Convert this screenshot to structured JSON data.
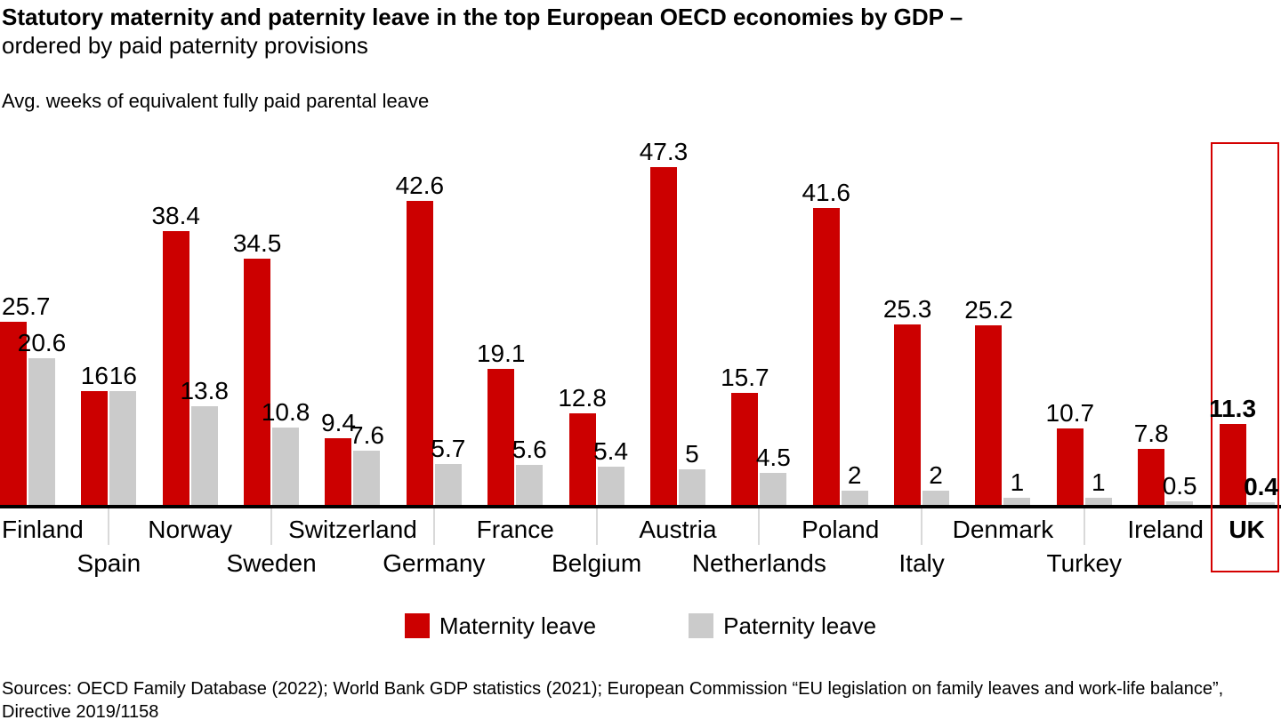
{
  "title": {
    "line1": "Statutory maternity and paternity leave in the top European OECD economies by GDP –",
    "line2": "ordered by paid paternity provisions"
  },
  "subtitle": "Avg. weeks of equivalent fully paid parental leave",
  "legend": {
    "maternity_label": "Maternity leave",
    "paternity_label": "Paternity leave"
  },
  "sources": {
    "line1": "Sources: OECD Family Database (2022); World Bank GDP statistics (2021); European Commission “EU legislation on family leaves and work-life balance”,",
    "line2": "Directive 2019/1158"
  },
  "colors": {
    "maternity": "#cc0000",
    "paternity": "#cbcbcb",
    "axis": "#000000",
    "tick": "#d9d9d9",
    "highlight_box": "#d40000",
    "text": "#000000"
  },
  "highlight_country": "UK",
  "chart_data": {
    "type": "bar",
    "title": "Statutory maternity and paternity leave in the top European OECD economies by GDP – ordered by paid paternity provisions",
    "ylabel": "Avg. weeks of equivalent fully paid parental leave",
    "categories": [
      "Finland",
      "Spain",
      "Norway",
      "Sweden",
      "Switzerland",
      "Germany",
      "France",
      "Belgium",
      "Austria",
      "Netherlands",
      "Poland",
      "Italy",
      "Denmark",
      "Turkey",
      "Ireland",
      "UK"
    ],
    "series": [
      {
        "name": "Maternity leave",
        "values": [
          25.7,
          16,
          38.4,
          34.5,
          9.4,
          42.6,
          19.1,
          12.8,
          47.3,
          15.7,
          41.6,
          25.3,
          25.2,
          10.7,
          7.8,
          11.3
        ]
      },
      {
        "name": "Paternity leave",
        "values": [
          20.6,
          16,
          13.8,
          10.8,
          7.6,
          5.7,
          5.6,
          5.4,
          5,
          4.5,
          2,
          2,
          1,
          1,
          0.5,
          0.4
        ]
      }
    ],
    "ylim": [
      0,
      50
    ],
    "grid": false,
    "value_labels": true,
    "legend_position": "bottom",
    "highlight": "UK",
    "note": "ordered by paid paternity provisions"
  }
}
